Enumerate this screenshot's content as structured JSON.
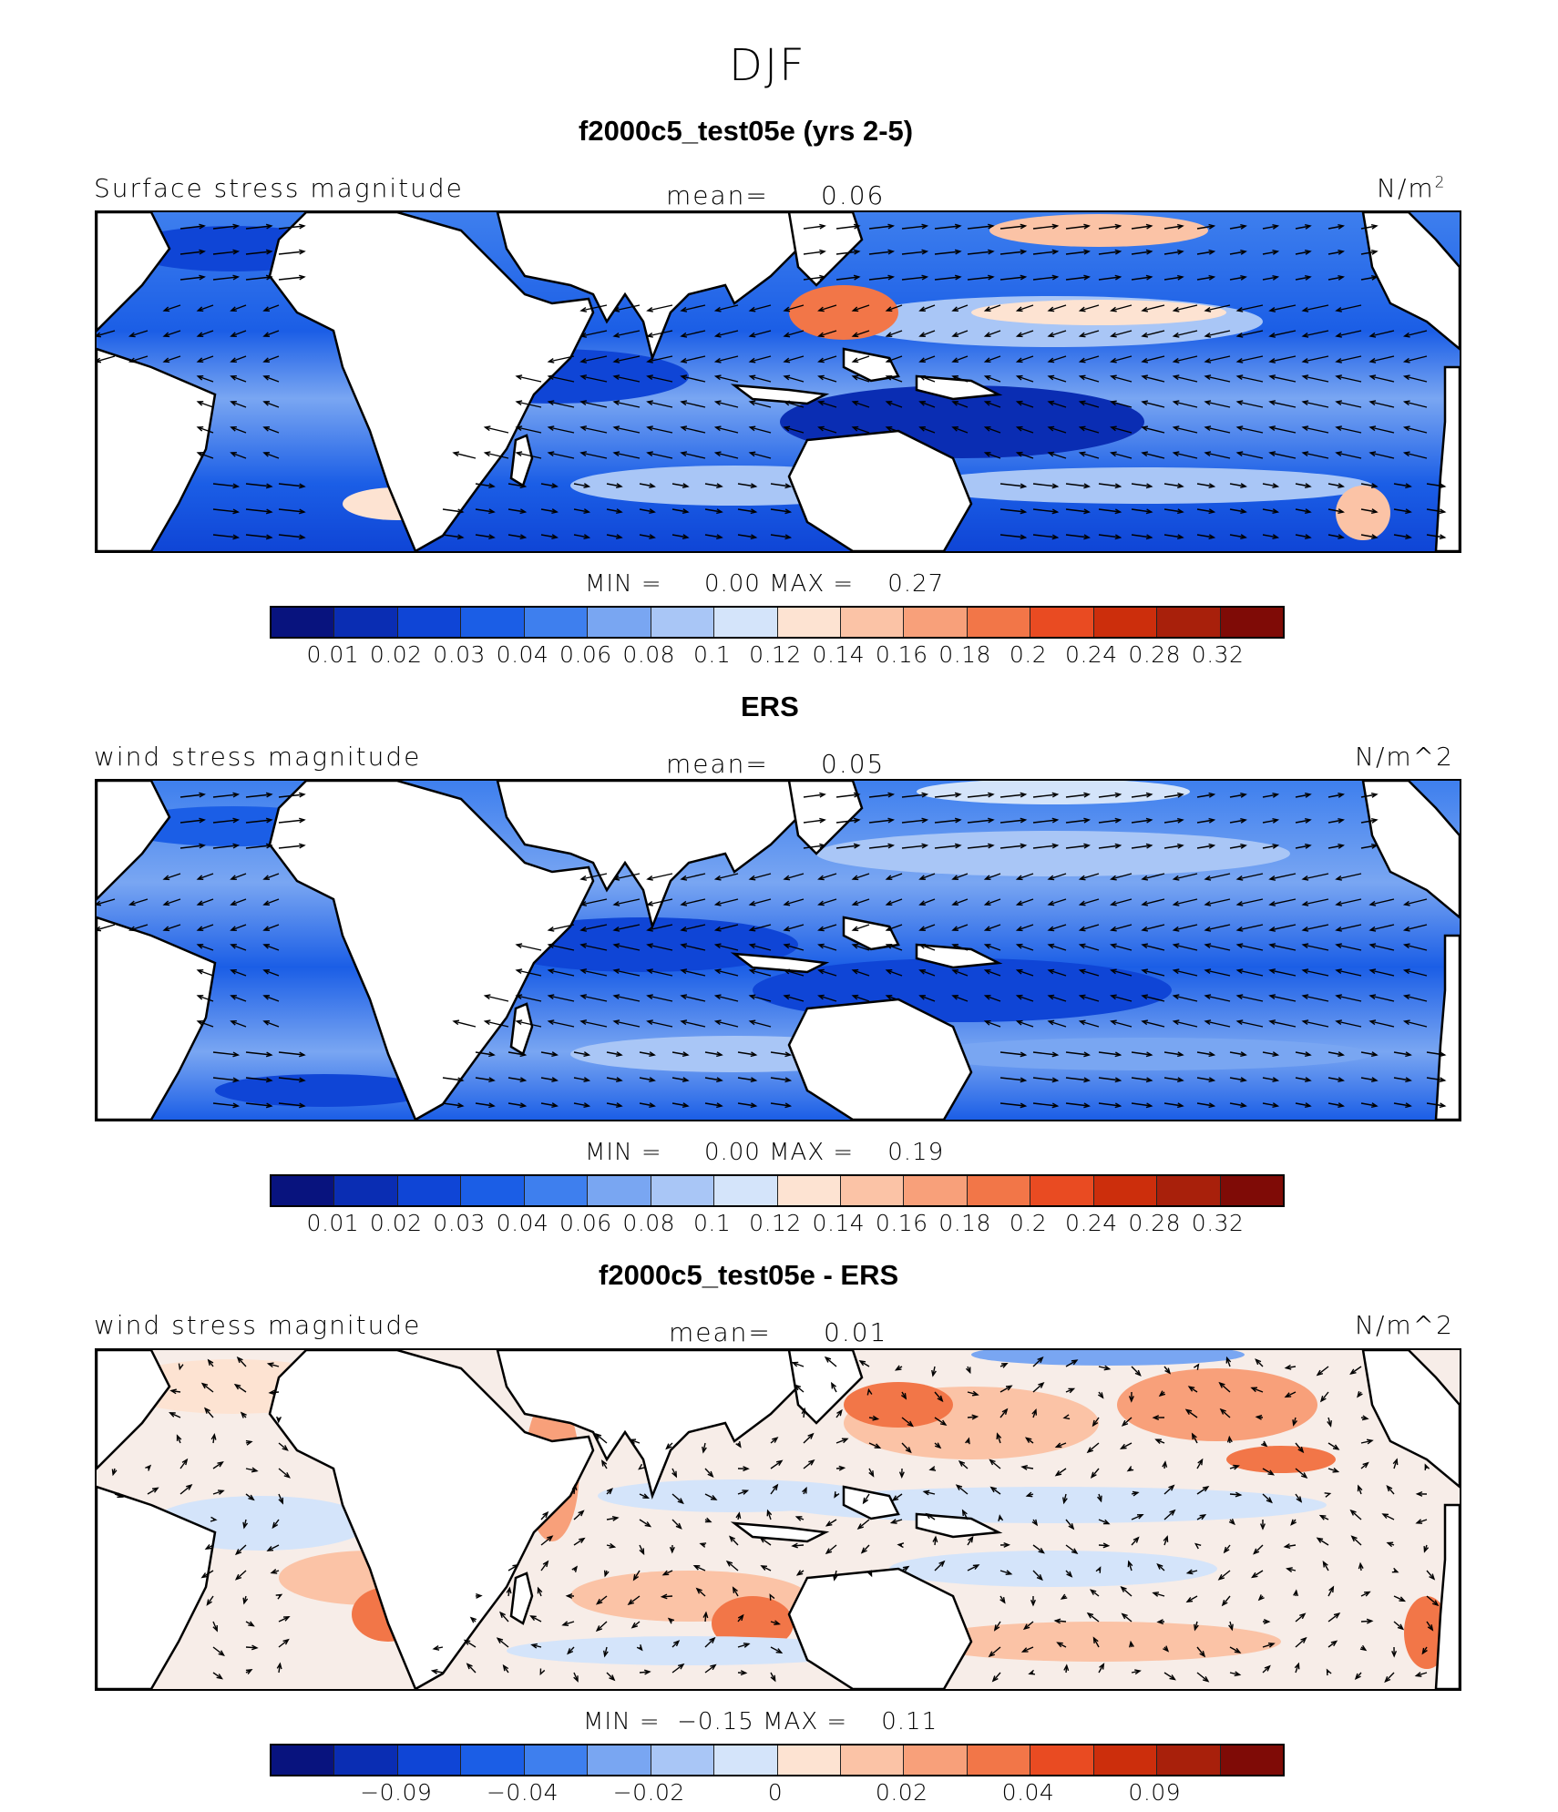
{
  "page": {
    "title": "DJF"
  },
  "panels": [
    {
      "title": "f2000c5_test05e (yrs 2-5)",
      "left_label": "Surface stress magnitude",
      "mean_label": "mean=",
      "mean_value": "0.06",
      "units": "N/m",
      "units_sup": "2",
      "stats": {
        "min_label": "MIN =",
        "min": "0.00",
        "max_label": "MAX =",
        "max": "0.27"
      },
      "colorbar": {
        "colors": [
          "#08137e",
          "#0a2db3",
          "#0f45d6",
          "#1b5ee6",
          "#3e7fee",
          "#79a6f2",
          "#a9c6f6",
          "#d4e4fa",
          "#fde3d2",
          "#fbc3a6",
          "#f8a07a",
          "#f27648",
          "#e94b22",
          "#cc2e0c",
          "#a8200b",
          "#7f0b06"
        ],
        "ticks": [
          "0.01",
          "0.02",
          "0.03",
          "0.04",
          "0.06",
          "0.08",
          "0.1",
          "0.12",
          "0.14",
          "0.16",
          "0.18",
          "0.2",
          "0.24",
          "0.28",
          "0.32"
        ]
      }
    },
    {
      "title": "ERS",
      "left_label": "wind stress magnitude",
      "mean_label": "mean=",
      "mean_value": "0.05",
      "units": "N/m^2",
      "units_sup": "",
      "stats": {
        "min_label": "MIN =",
        "min": "0.00",
        "max_label": "MAX =",
        "max": "0.19"
      },
      "colorbar": {
        "colors": [
          "#08137e",
          "#0a2db3",
          "#0f45d6",
          "#1b5ee6",
          "#3e7fee",
          "#79a6f2",
          "#a9c6f6",
          "#d4e4fa",
          "#fde3d2",
          "#fbc3a6",
          "#f8a07a",
          "#f27648",
          "#e94b22",
          "#cc2e0c",
          "#a8200b",
          "#7f0b06"
        ],
        "ticks": [
          "0.01",
          "0.02",
          "0.03",
          "0.04",
          "0.06",
          "0.08",
          "0.1",
          "0.12",
          "0.14",
          "0.16",
          "0.18",
          "0.2",
          "0.24",
          "0.28",
          "0.32"
        ]
      }
    },
    {
      "title": "f2000c5_test05e - ERS",
      "left_label": "wind stress magnitude",
      "mean_label": "mean=",
      "mean_value": "0.01",
      "units": "N/m^2",
      "units_sup": "",
      "stats": {
        "min_label": "MIN =",
        "min": "−0.15",
        "max_label": "MAX =",
        "max": "0.11"
      },
      "colorbar": {
        "colors": [
          "#08137e",
          "#0a2db3",
          "#0f45d6",
          "#1b5ee6",
          "#3e7fee",
          "#79a6f2",
          "#a9c6f6",
          "#d4e4fa",
          "#fde3d2",
          "#fbc3a6",
          "#f8a07a",
          "#f27648",
          "#e94b22",
          "#cc2e0c",
          "#a8200b",
          "#7f0b06"
        ],
        "ticks": [
          "−0.09",
          "−0.04",
          "−0.02",
          "0",
          "0.02",
          "0.04",
          "0.09"
        ]
      }
    }
  ]
}
